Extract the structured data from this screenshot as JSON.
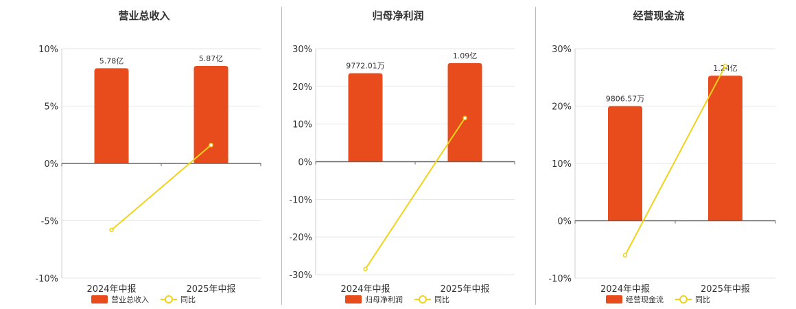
{
  "colors": {
    "bar": "#e84c1c",
    "line": "#f2d21a",
    "axis": "#666666",
    "grid": "#e6e6e6",
    "separator": "#b9b9b9"
  },
  "legend": {
    "line_label": "同比"
  },
  "chart_data": [
    {
      "type": "bar",
      "title": "营业总收入",
      "categories": [
        "2024年中报",
        "2025年中报"
      ],
      "ylim": [
        -10,
        10
      ],
      "yticks": [
        "10%",
        "5%",
        "0%",
        "-5%",
        "-10%"
      ],
      "ytick_values": [
        10,
        5,
        0,
        -5,
        -10
      ],
      "series": [
        {
          "name": "营业总收入",
          "kind": "bar",
          "values": [
            8.3,
            8.5
          ],
          "labels": [
            "5.78亿",
            "5.87亿"
          ]
        },
        {
          "name": "同比",
          "kind": "line",
          "values": [
            -5.8,
            1.6
          ]
        }
      ]
    },
    {
      "type": "bar",
      "title": "归母净利润",
      "categories": [
        "2024年中报",
        "2025年中报"
      ],
      "ylim": [
        -30,
        30
      ],
      "yticks": [
        "30%",
        "20%",
        "10%",
        "0%",
        "-10%",
        "-20%",
        "-30%"
      ],
      "ytick_values": [
        30,
        20,
        10,
        0,
        -10,
        -20,
        -30
      ],
      "series": [
        {
          "name": "归母净利润",
          "kind": "bar",
          "values": [
            23.5,
            26.2
          ],
          "labels": [
            "9772.01万",
            "1.09亿"
          ]
        },
        {
          "name": "同比",
          "kind": "line",
          "values": [
            -28.5,
            11.6
          ]
        }
      ]
    },
    {
      "type": "bar",
      "title": "经营现金流",
      "categories": [
        "2024年中报",
        "2025年中报"
      ],
      "ylim": [
        -10,
        30
      ],
      "yticks": [
        "30%",
        "20%",
        "10%",
        "0%",
        "-10%"
      ],
      "ytick_values": [
        30,
        20,
        10,
        0,
        -10
      ],
      "series": [
        {
          "name": "经营现金流",
          "kind": "bar",
          "values": [
            20.0,
            25.3
          ],
          "labels": [
            "9806.57万",
            "1.24亿"
          ]
        },
        {
          "name": "同比",
          "kind": "line",
          "values": [
            -6.0,
            27.0
          ]
        }
      ]
    }
  ]
}
